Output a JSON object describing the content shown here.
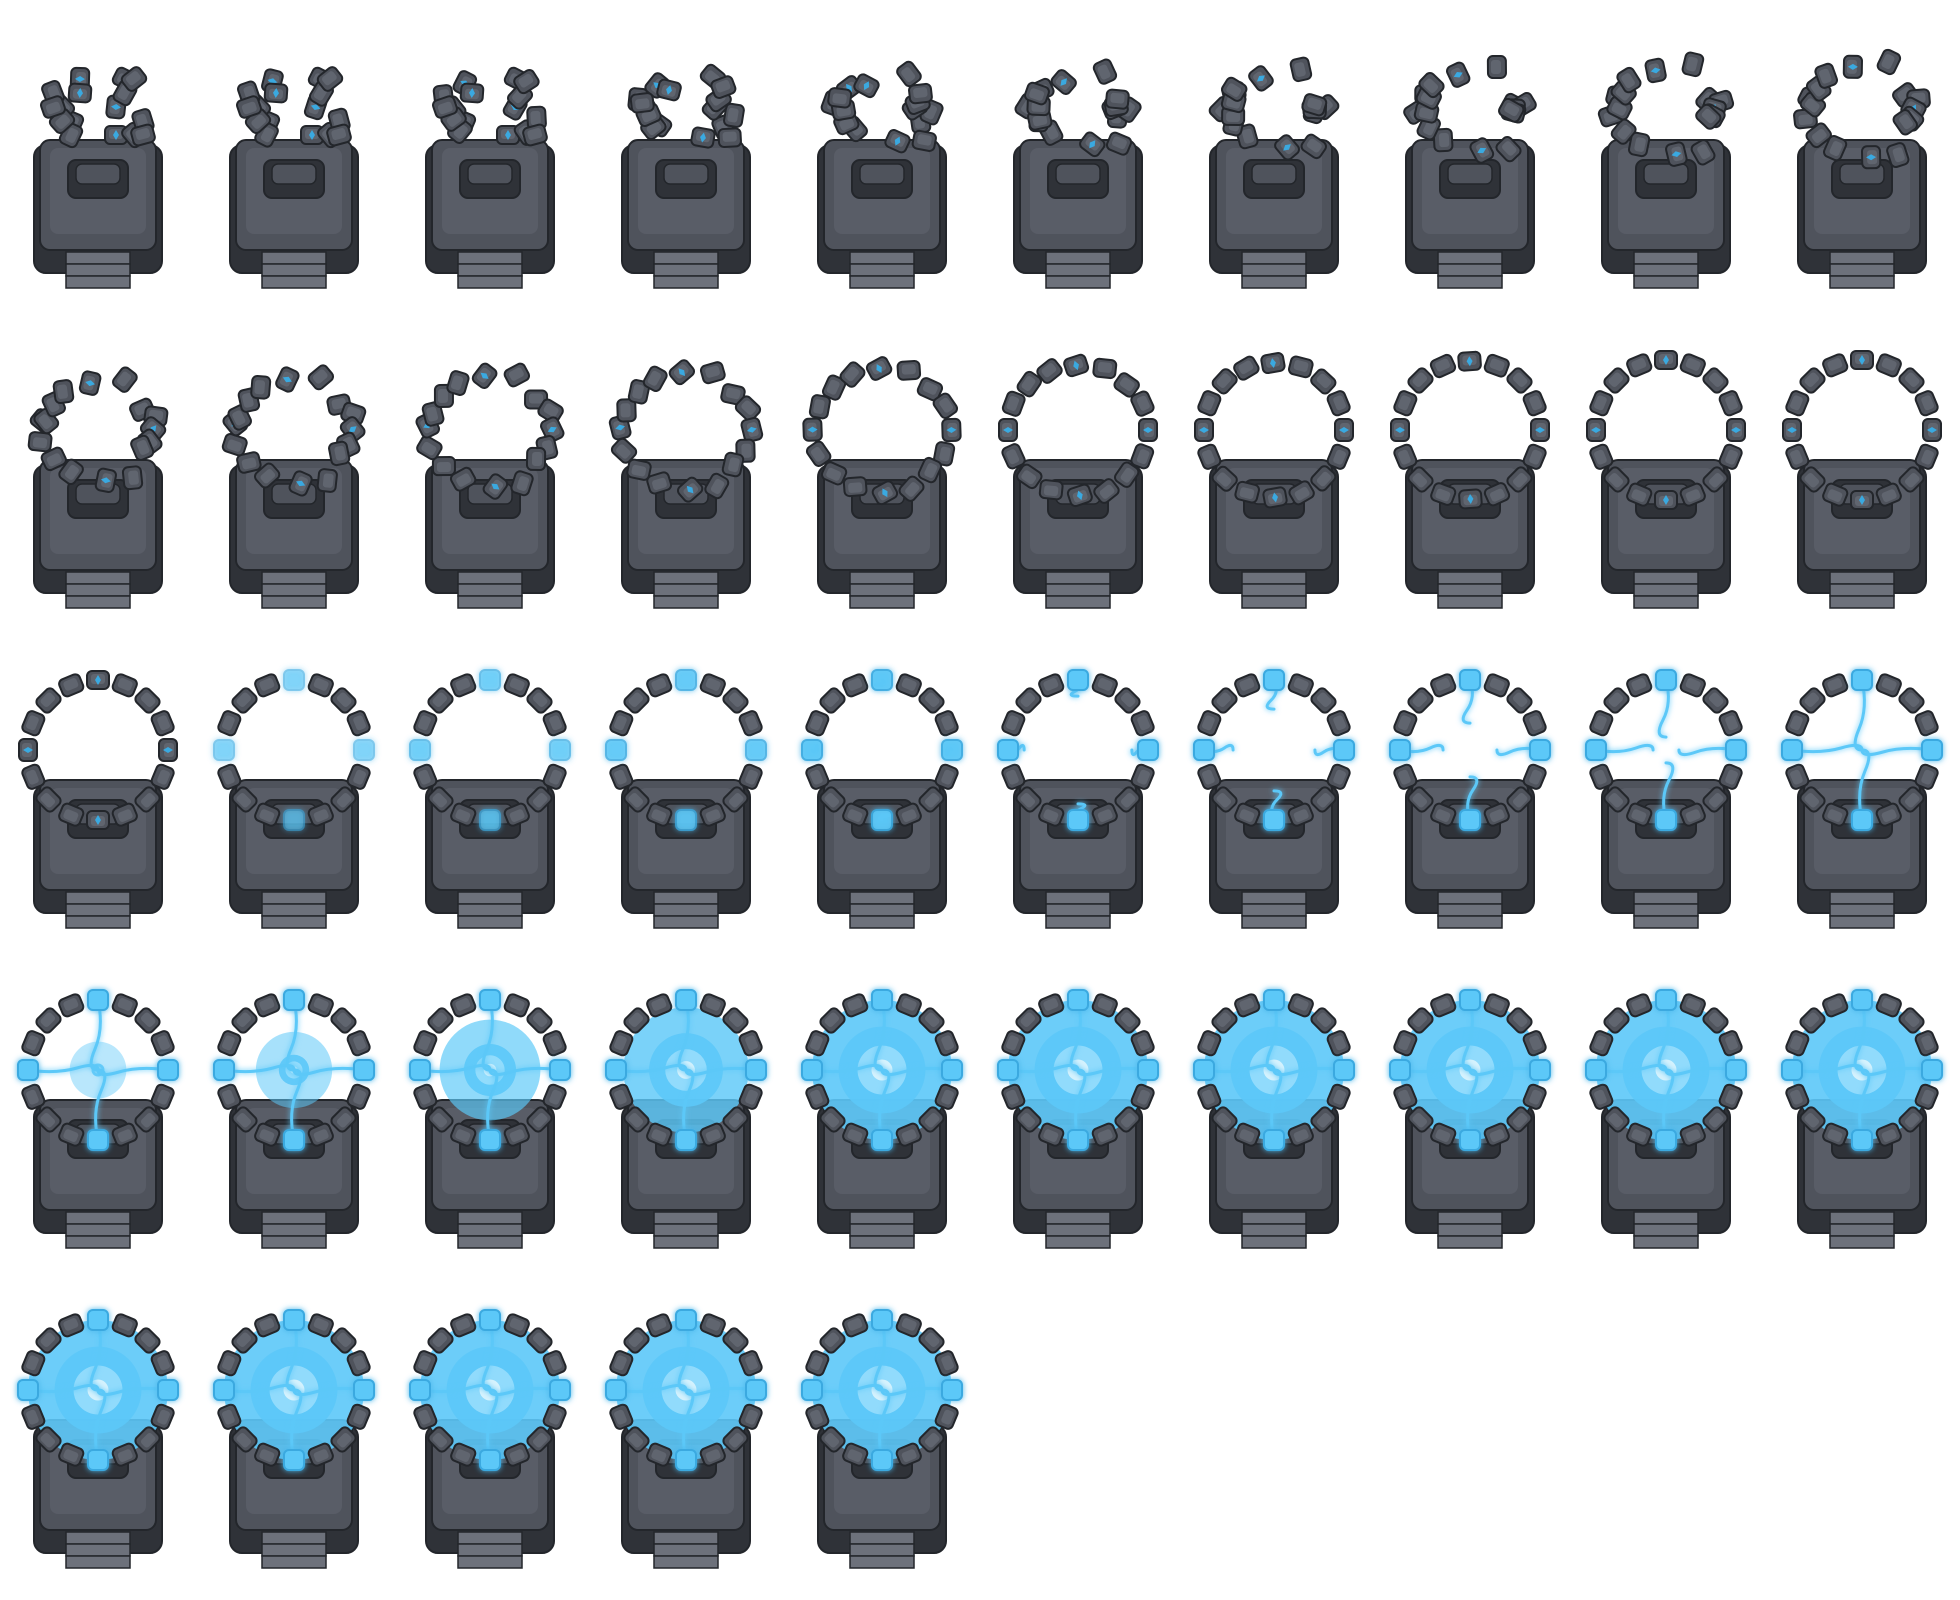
{
  "sprite_sheet": {
    "columns": 10,
    "rows": 5,
    "frame_count": 45,
    "colors": {
      "background": "#ffffff",
      "metal_dark": "#2f3238",
      "metal_mid": "#4f535c",
      "metal_light": "#6d717b",
      "outline": "#23262b",
      "crystal": "#3aa9e0",
      "energy": "#5cc8f8",
      "energy_light": "#9fe0fc",
      "energy_core": "#d6f2fd"
    },
    "frames": [
      {
        "stage": "ring_assemble",
        "progress": 0.0,
        "energy": 0.0,
        "portal": 0.0
      },
      {
        "stage": "ring_assemble",
        "progress": 0.06,
        "energy": 0.0,
        "portal": 0.0
      },
      {
        "stage": "ring_assemble",
        "progress": 0.12,
        "energy": 0.0,
        "portal": 0.0
      },
      {
        "stage": "ring_assemble",
        "progress": 0.18,
        "energy": 0.0,
        "portal": 0.0
      },
      {
        "stage": "ring_assemble",
        "progress": 0.25,
        "energy": 0.0,
        "portal": 0.0
      },
      {
        "stage": "ring_assemble",
        "progress": 0.31,
        "energy": 0.0,
        "portal": 0.0
      },
      {
        "stage": "ring_assemble",
        "progress": 0.37,
        "energy": 0.0,
        "portal": 0.0
      },
      {
        "stage": "ring_assemble",
        "progress": 0.43,
        "energy": 0.0,
        "portal": 0.0
      },
      {
        "stage": "ring_assemble",
        "progress": 0.5,
        "energy": 0.0,
        "portal": 0.0
      },
      {
        "stage": "ring_assemble",
        "progress": 0.56,
        "energy": 0.0,
        "portal": 0.0
      },
      {
        "stage": "ring_assemble",
        "progress": 0.62,
        "energy": 0.0,
        "portal": 0.0
      },
      {
        "stage": "ring_assemble",
        "progress": 0.68,
        "energy": 0.0,
        "portal": 0.0
      },
      {
        "stage": "ring_assemble",
        "progress": 0.74,
        "energy": 0.0,
        "portal": 0.0
      },
      {
        "stage": "ring_assemble",
        "progress": 0.8,
        "energy": 0.0,
        "portal": 0.0
      },
      {
        "stage": "ring_assemble",
        "progress": 0.86,
        "energy": 0.0,
        "portal": 0.0
      },
      {
        "stage": "ring_assemble",
        "progress": 0.91,
        "energy": 0.0,
        "portal": 0.0
      },
      {
        "stage": "ring_assemble",
        "progress": 0.95,
        "energy": 0.0,
        "portal": 0.0
      },
      {
        "stage": "ring_assemble",
        "progress": 0.98,
        "energy": 0.0,
        "portal": 0.0
      },
      {
        "stage": "ring_assemble",
        "progress": 1.0,
        "energy": 0.0,
        "portal": 0.0
      },
      {
        "stage": "ring_assemble",
        "progress": 1.0,
        "energy": 0.0,
        "portal": 0.0
      },
      {
        "stage": "charge",
        "progress": 1.0,
        "energy": 0.0,
        "portal": 0.0
      },
      {
        "stage": "charge",
        "progress": 1.0,
        "energy": 0.1,
        "portal": 0.0
      },
      {
        "stage": "charge",
        "progress": 1.0,
        "energy": 0.2,
        "portal": 0.0
      },
      {
        "stage": "charge",
        "progress": 1.0,
        "energy": 0.3,
        "portal": 0.0
      },
      {
        "stage": "charge",
        "progress": 1.0,
        "energy": 0.4,
        "portal": 0.0
      },
      {
        "stage": "charge",
        "progress": 1.0,
        "energy": 0.5,
        "portal": 0.0
      },
      {
        "stage": "charge",
        "progress": 1.0,
        "energy": 0.62,
        "portal": 0.0
      },
      {
        "stage": "charge",
        "progress": 1.0,
        "energy": 0.75,
        "portal": 0.0
      },
      {
        "stage": "charge",
        "progress": 1.0,
        "energy": 0.88,
        "portal": 0.0
      },
      {
        "stage": "charge",
        "progress": 1.0,
        "energy": 1.0,
        "portal": 0.0
      },
      {
        "stage": "portal_open",
        "progress": 1.0,
        "energy": 1.0,
        "portal": 0.15
      },
      {
        "stage": "portal_open",
        "progress": 1.0,
        "energy": 1.0,
        "portal": 0.35
      },
      {
        "stage": "portal_open",
        "progress": 1.0,
        "energy": 1.0,
        "portal": 0.6
      },
      {
        "stage": "portal_open",
        "progress": 1.0,
        "energy": 1.0,
        "portal": 0.85
      },
      {
        "stage": "portal_loop",
        "progress": 1.0,
        "energy": 1.0,
        "portal": 1.0
      },
      {
        "stage": "portal_loop",
        "progress": 1.0,
        "energy": 1.0,
        "portal": 1.0
      },
      {
        "stage": "portal_loop",
        "progress": 1.0,
        "energy": 1.0,
        "portal": 1.0
      },
      {
        "stage": "portal_loop",
        "progress": 1.0,
        "energy": 1.0,
        "portal": 1.0
      },
      {
        "stage": "portal_loop",
        "progress": 1.0,
        "energy": 1.0,
        "portal": 1.0
      },
      {
        "stage": "portal_loop",
        "progress": 1.0,
        "energy": 1.0,
        "portal": 1.0
      },
      {
        "stage": "portal_loop",
        "progress": 1.0,
        "energy": 1.0,
        "portal": 1.0
      },
      {
        "stage": "portal_loop",
        "progress": 1.0,
        "energy": 1.0,
        "portal": 1.0
      },
      {
        "stage": "portal_loop",
        "progress": 1.0,
        "energy": 1.0,
        "portal": 1.0
      },
      {
        "stage": "portal_loop",
        "progress": 1.0,
        "energy": 1.0,
        "portal": 1.0
      },
      {
        "stage": "portal_loop",
        "progress": 1.0,
        "energy": 1.0,
        "portal": 1.0
      }
    ]
  }
}
